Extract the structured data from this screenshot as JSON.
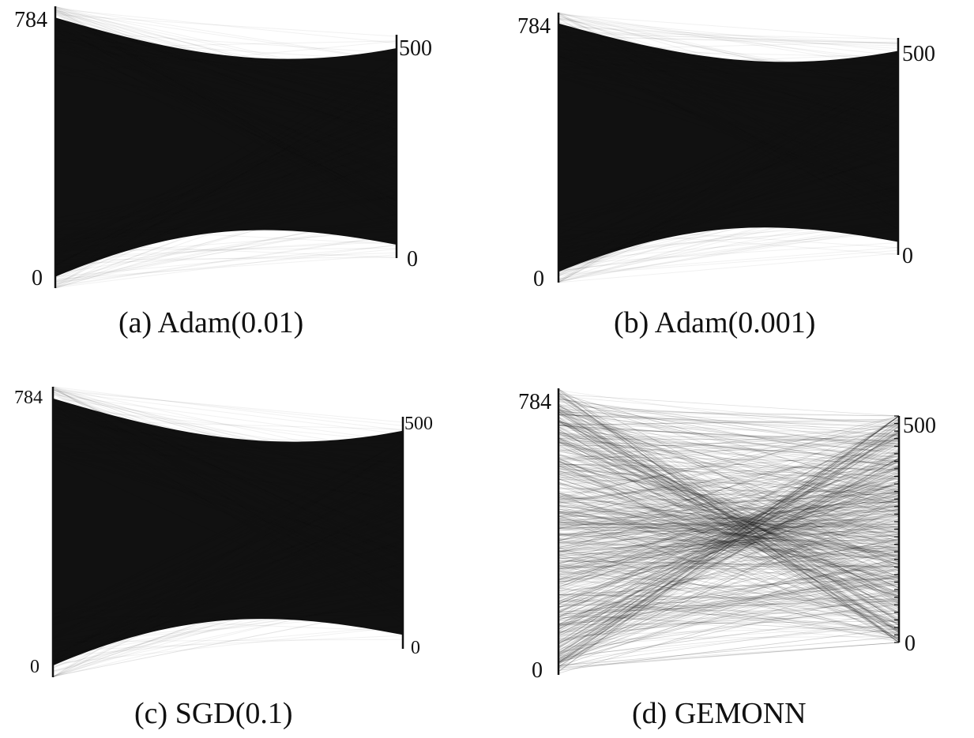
{
  "figure": {
    "panels": [
      {
        "id": "a",
        "caption_label": "(a)",
        "caption_text": "Adam(0.01)",
        "input_layer": {
          "min_label": "0",
          "max_label": "784",
          "size": 784
        },
        "output_layer": {
          "min_label": "0",
          "max_label": "500",
          "size": 500
        },
        "connectivity": "dense"
      },
      {
        "id": "b",
        "caption_label": "(b)",
        "caption_text": "Adam(0.001)",
        "input_layer": {
          "min_label": "0",
          "max_label": "784",
          "size": 784
        },
        "output_layer": {
          "min_label": "0",
          "max_label": "500",
          "size": 500
        },
        "connectivity": "dense"
      },
      {
        "id": "c",
        "caption_label": "(c)",
        "caption_text": "SGD(0.1)",
        "input_layer": {
          "min_label": "0",
          "max_label": "784",
          "size": 784
        },
        "output_layer": {
          "min_label": "0",
          "max_label": "500",
          "size": 500
        },
        "connectivity": "dense"
      },
      {
        "id": "d",
        "caption_label": "(d)",
        "caption_text": "GEMONN",
        "input_layer": {
          "min_label": "0",
          "max_label": "784",
          "size": 784
        },
        "output_layer": {
          "min_label": "0",
          "max_label": "500",
          "size": 500
        },
        "connectivity": "sparse"
      }
    ],
    "colors": {
      "edge": "#111111",
      "background": "#ffffff"
    }
  }
}
